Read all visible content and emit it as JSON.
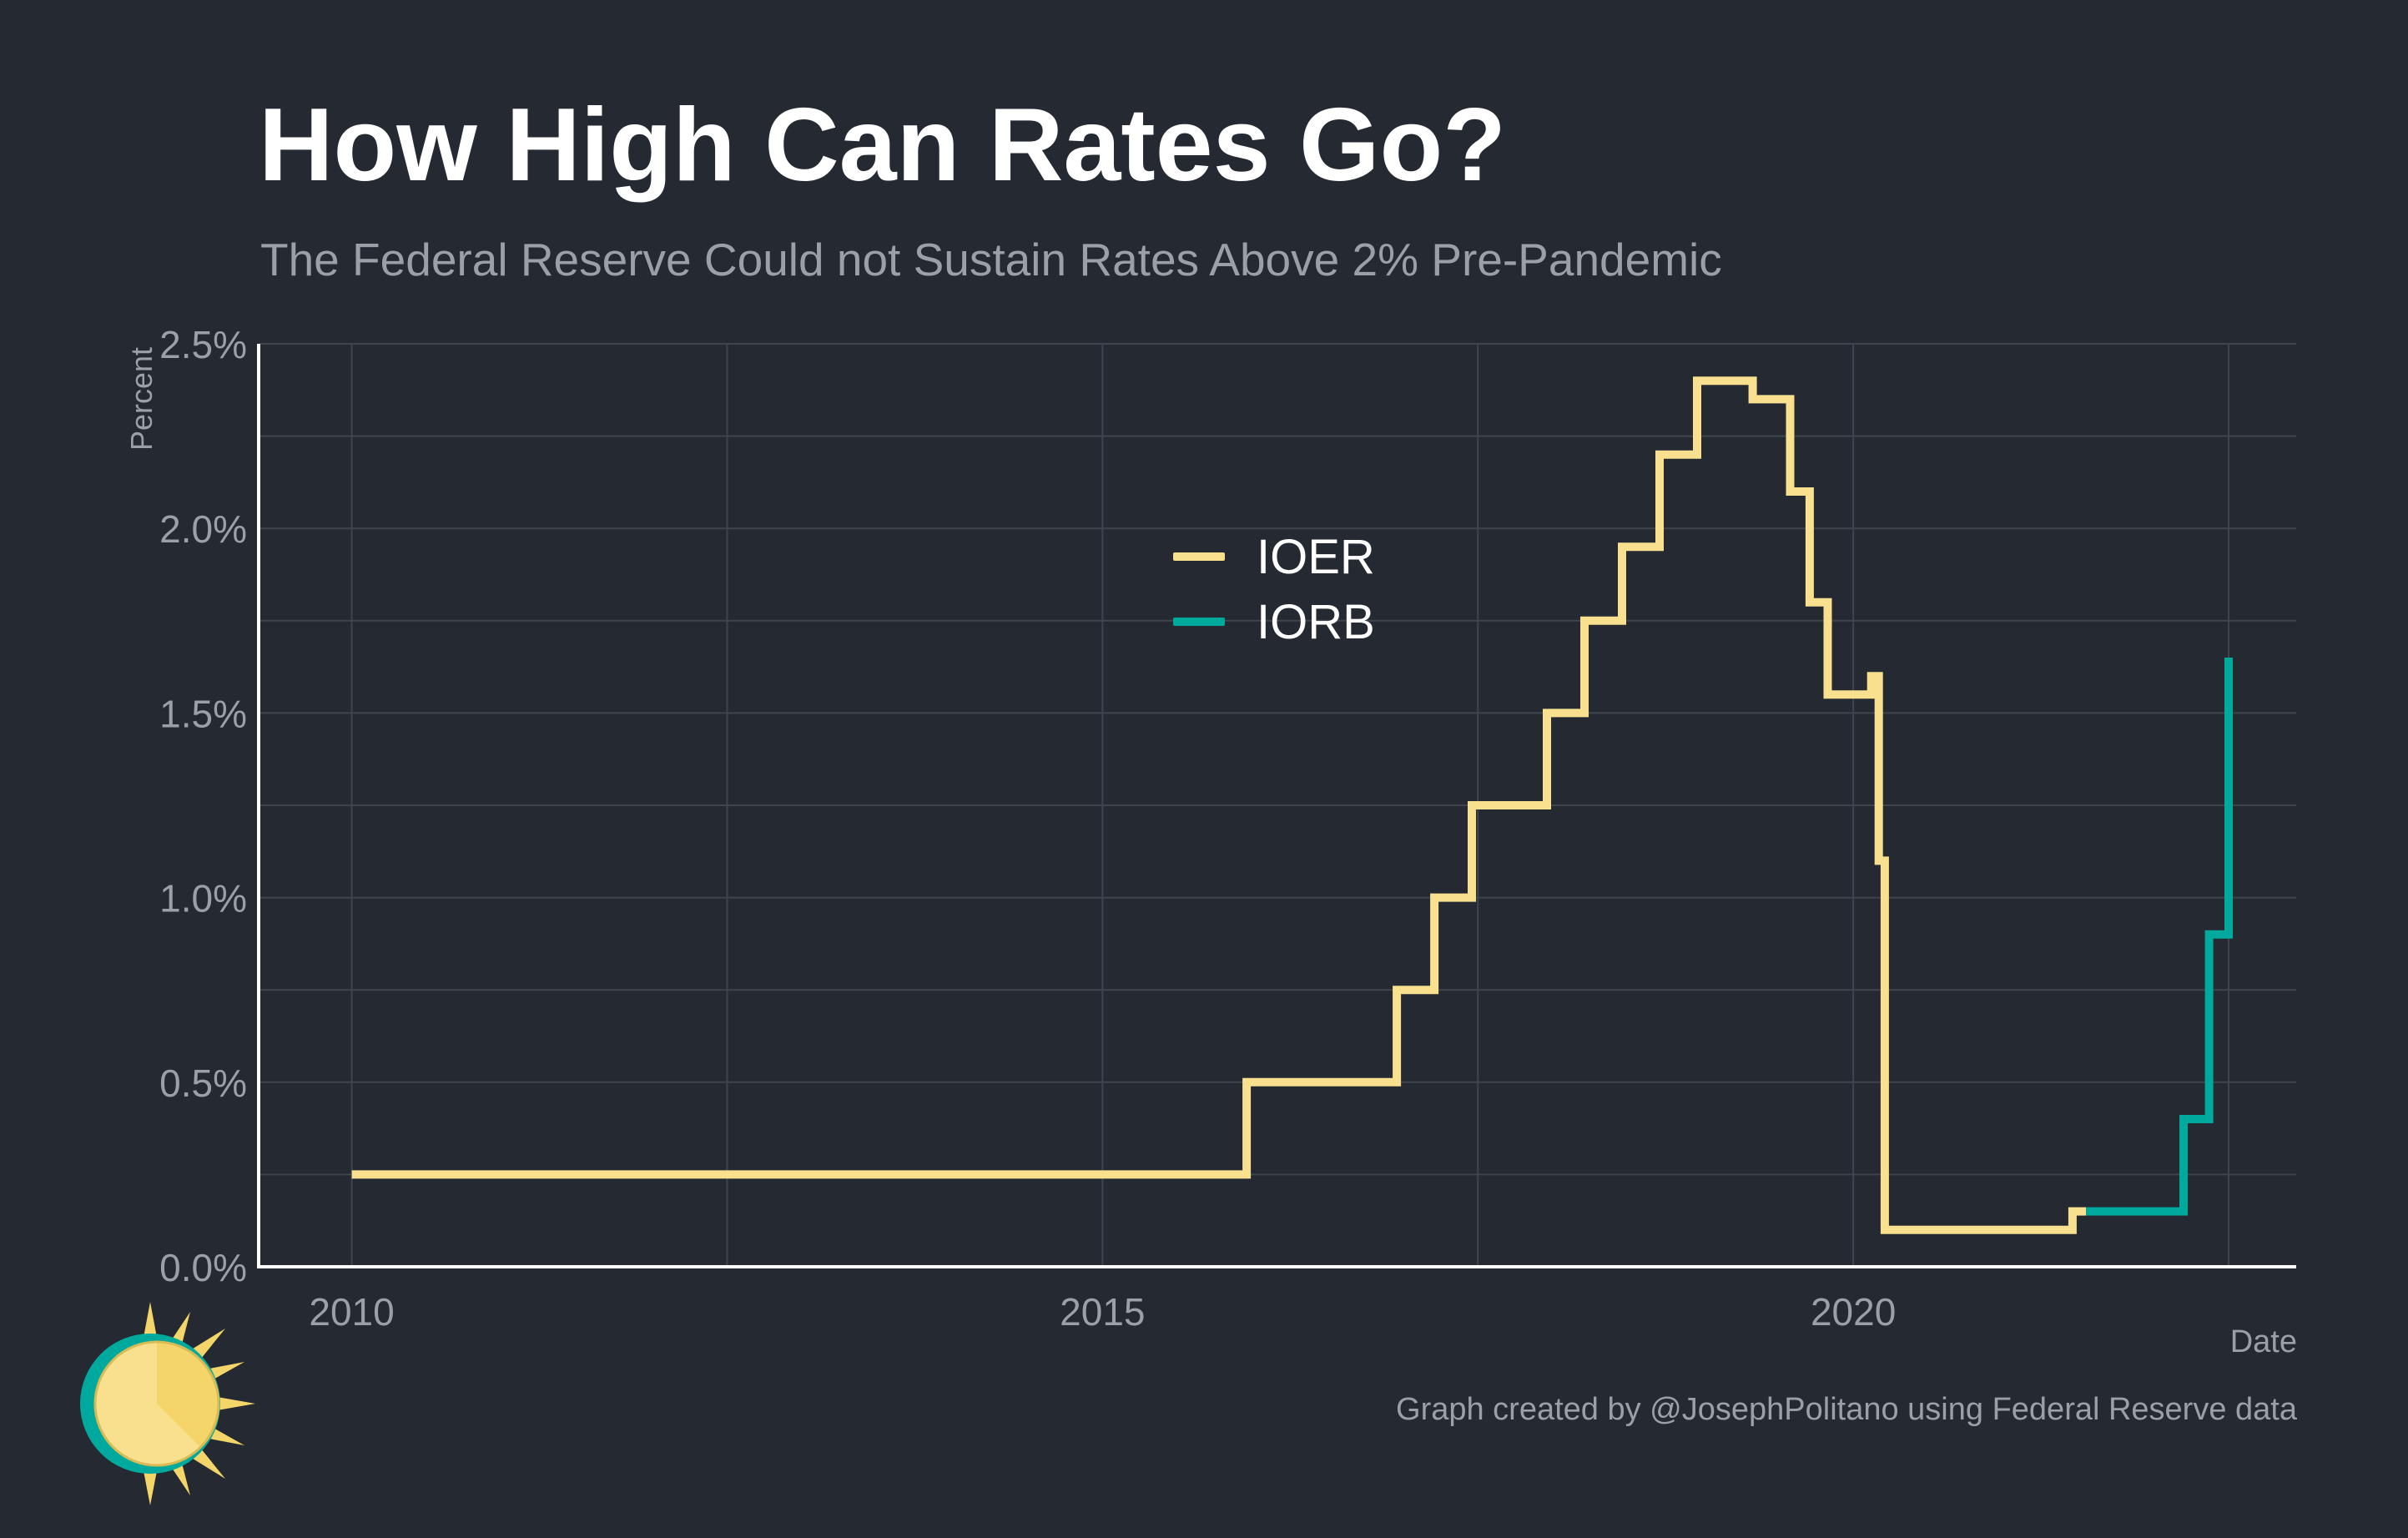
{
  "header": {
    "title": "How High Can Rates Go?",
    "subtitle": "The Federal Reserve Could not Sustain Rates Above 2% Pre-Pandemic"
  },
  "footer": {
    "caption": "Graph created by @JosephPolitano using Federal Reserve data"
  },
  "colors": {
    "background": "#252932",
    "grid": "#3f444d",
    "axis": "#ffffff",
    "tick_text": "#9b9fa6",
    "ioer": "#f8e08e",
    "iorb": "#00a99d"
  },
  "logo": {
    "icon": "sun-icon"
  },
  "chart_data": {
    "type": "line",
    "title": "How High Can Rates Go?",
    "subtitle": "The Federal Reserve Could not Sustain Rates Above 2% Pre-Pandemic",
    "xlabel": "Date",
    "ylabel": "Percent",
    "xlim": [
      2009.38,
      2022.95
    ],
    "ylim": [
      0,
      2.5
    ],
    "x_ticks": [
      {
        "value": 2010,
        "label": "2010"
      },
      {
        "value": 2015,
        "label": "2015"
      },
      {
        "value": 2020,
        "label": "2020"
      }
    ],
    "y_ticks": [
      {
        "value": 0,
        "label": "0.0%"
      },
      {
        "value": 0.5,
        "label": "0.5%"
      },
      {
        "value": 1.0,
        "label": "1.0%"
      },
      {
        "value": 1.5,
        "label": "1.5%"
      },
      {
        "value": 2.0,
        "label": "2.0%"
      },
      {
        "value": 2.5,
        "label": "2.5%"
      }
    ],
    "grid": true,
    "legend_position": "upper-center",
    "step": true,
    "series": [
      {
        "name": "IOER",
        "color": "#f8e08e",
        "x": [
          2010.0,
          2015.96,
          2016.96,
          2017.21,
          2017.46,
          2017.96,
          2018.21,
          2018.46,
          2018.71,
          2018.96,
          2019.33,
          2019.58,
          2019.71,
          2019.83,
          2020.12,
          2020.17,
          2020.21,
          2021.46,
          2021.55
        ],
        "values": [
          0.25,
          0.5,
          0.75,
          1.0,
          1.25,
          1.5,
          1.75,
          1.95,
          2.2,
          2.4,
          2.35,
          2.1,
          1.8,
          1.55,
          1.6,
          1.1,
          0.1,
          0.15,
          0.15
        ]
      },
      {
        "name": "IORB",
        "color": "#00a99d",
        "x": [
          2021.55,
          2022.2,
          2022.37,
          2022.5,
          2022.5
        ],
        "values": [
          0.15,
          0.4,
          0.9,
          1.65,
          1.65
        ]
      }
    ]
  }
}
